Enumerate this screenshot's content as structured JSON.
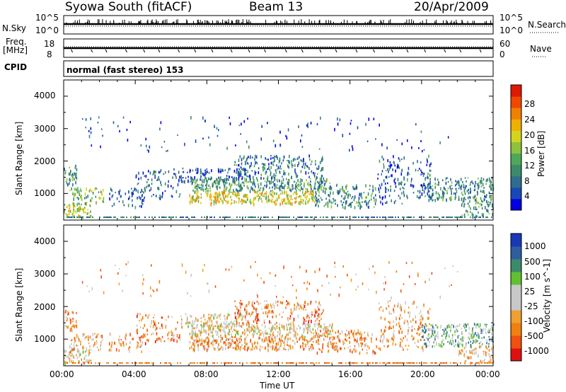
{
  "header": {
    "site": "Syowa South (fitACF)",
    "beam": "Beam 13",
    "date": "20/Apr/2009"
  },
  "side_labels": {
    "nsky": "N.Sky",
    "nsearch": "N.Search",
    "freq_line1": "Freq.",
    "freq_line2": "[MHz]",
    "nave": "Nave",
    "cpid": "CPID",
    "cpid_value": "normal (fast stereo) 153"
  },
  "noise_axis": {
    "left_top": "10^5",
    "left_bottom": "10^0",
    "right_top": "10^5",
    "right_bottom": "10^0"
  },
  "freq_axis": {
    "left_top": "18",
    "left_bottom": "8",
    "right_top": "60",
    "right_bottom": "0"
  },
  "chart_data": [
    {
      "type": "heatmap",
      "title": "Power",
      "ylabel": "Slant Range [km]",
      "xlabel": "Time UT",
      "ylim": [
        180,
        4500
      ],
      "yticks": [
        "4000",
        "3000",
        "2000",
        "1000"
      ],
      "xticks": [
        "00:00",
        "04:00",
        "08:00",
        "12:00",
        "16:00",
        "20:00",
        "00:00"
      ],
      "xlim_hours": [
        0,
        24
      ],
      "colorbar": {
        "label": "Power [dB]",
        "ticks": [
          "28",
          "24",
          "20",
          "16",
          "12",
          "8",
          "4"
        ],
        "range": [
          0,
          30
        ]
      },
      "colors": [
        "#0000e0",
        "#1848b8",
        "#2e6e8c",
        "#3c8a6c",
        "#4ea85a",
        "#8cc23c",
        "#d4d420",
        "#f0b000",
        "#f08000",
        "#f04800",
        "#e01800"
      ],
      "scatter_regions": [
        {
          "t": [
            0.0,
            1.5
          ],
          "r": [
            300,
            700
          ],
          "level": 0.55,
          "density": 0.55
        },
        {
          "t": [
            0.0,
            0.7
          ],
          "r": [
            1300,
            1900
          ],
          "level": 0.3,
          "density": 0.45
        },
        {
          "t": [
            0.3,
            2.2
          ],
          "r": [
            700,
            1200
          ],
          "level": 0.45,
          "density": 0.35
        },
        {
          "t": [
            2.5,
            4.5
          ],
          "r": [
            600,
            1200
          ],
          "level": 0.2,
          "density": 0.2
        },
        {
          "t": [
            4.0,
            6.5
          ],
          "r": [
            900,
            1800
          ],
          "level": 0.2,
          "density": 0.2
        },
        {
          "t": [
            6.5,
            10.0
          ],
          "r": [
            1400,
            1800
          ],
          "level": 0.2,
          "density": 0.4
        },
        {
          "t": [
            7.0,
            15.0
          ],
          "r": [
            1100,
            1500
          ],
          "level": 0.35,
          "density": 0.5
        },
        {
          "t": [
            7.0,
            14.0
          ],
          "r": [
            700,
            1100
          ],
          "level": 0.6,
          "density": 0.55
        },
        {
          "t": [
            9.5,
            14.5
          ],
          "r": [
            1500,
            2200
          ],
          "level": 0.25,
          "density": 0.3
        },
        {
          "t": [
            14.0,
            17.5
          ],
          "r": [
            600,
            1300
          ],
          "level": 0.3,
          "density": 0.35
        },
        {
          "t": [
            17.5,
            20.5
          ],
          "r": [
            700,
            2200
          ],
          "level": 0.2,
          "density": 0.18
        },
        {
          "t": [
            20.0,
            24.0
          ],
          "r": [
            800,
            1500
          ],
          "level": 0.3,
          "density": 0.4
        },
        {
          "t": [
            22.0,
            24.0
          ],
          "r": [
            300,
            800
          ],
          "level": 0.35,
          "density": 0.3
        },
        {
          "t": [
            1.0,
            22.0
          ],
          "r": [
            2300,
            3400
          ],
          "level": 0.15,
          "density": 0.025
        }
      ]
    },
    {
      "type": "heatmap",
      "title": "Velocity",
      "ylabel": "Slant Range [km]",
      "xlabel": "Time UT",
      "ylim": [
        180,
        4500
      ],
      "yticks": [
        "4000",
        "3000",
        "2000",
        "1000"
      ],
      "xticks": [
        "00:00",
        "04:00",
        "08:00",
        "12:00",
        "16:00",
        "20:00",
        "00:00"
      ],
      "xlim_hours": [
        0,
        24
      ],
      "colorbar": {
        "label": "Velocity [m s^-1]",
        "ticks": [
          "1000",
          "500",
          "100",
          "25",
          "-25",
          "-100",
          "-500",
          "-1000"
        ],
        "range": [
          -1000,
          1000
        ]
      },
      "colors": [
        "#e01010",
        "#f05010",
        "#f08010",
        "#f0a030",
        "#c8c8c8",
        "#c8c8c8",
        "#60c030",
        "#3c8a6c",
        "#2e5ea0",
        "#1838b8"
      ],
      "scatter_regions": [
        {
          "t": [
            0.0,
            1.5
          ],
          "r": [
            300,
            700
          ],
          "level": 0.45,
          "density": 0.5
        },
        {
          "t": [
            0.0,
            0.7
          ],
          "r": [
            1300,
            1900
          ],
          "level": 0.3,
          "density": 0.45
        },
        {
          "t": [
            0.3,
            2.2
          ],
          "r": [
            700,
            1200
          ],
          "level": 0.35,
          "density": 0.35
        },
        {
          "t": [
            2.5,
            4.5
          ],
          "r": [
            600,
            1200
          ],
          "level": 0.3,
          "density": 0.2
        },
        {
          "t": [
            4.0,
            6.5
          ],
          "r": [
            900,
            1800
          ],
          "level": 0.25,
          "density": 0.2
        },
        {
          "t": [
            6.5,
            10.0
          ],
          "r": [
            1400,
            1800
          ],
          "level": 0.45,
          "density": 0.4
        },
        {
          "t": [
            7.0,
            15.0
          ],
          "r": [
            1100,
            1500
          ],
          "level": 0.45,
          "density": 0.5
        },
        {
          "t": [
            7.0,
            14.0
          ],
          "r": [
            700,
            1100
          ],
          "level": 0.3,
          "density": 0.55
        },
        {
          "t": [
            9.5,
            14.5
          ],
          "r": [
            1500,
            2200
          ],
          "level": 0.25,
          "density": 0.3
        },
        {
          "t": [
            14.0,
            17.5
          ],
          "r": [
            600,
            1300
          ],
          "level": 0.3,
          "density": 0.35
        },
        {
          "t": [
            17.5,
            20.5
          ],
          "r": [
            700,
            2200
          ],
          "level": 0.3,
          "density": 0.18
        },
        {
          "t": [
            20.0,
            24.0
          ],
          "r": [
            800,
            1500
          ],
          "level": 0.65,
          "density": 0.4
        },
        {
          "t": [
            22.0,
            24.0
          ],
          "r": [
            300,
            800
          ],
          "level": 0.4,
          "density": 0.3
        },
        {
          "t": [
            1.0,
            22.0
          ],
          "r": [
            2300,
            3400
          ],
          "level": 0.3,
          "density": 0.025
        }
      ]
    }
  ]
}
